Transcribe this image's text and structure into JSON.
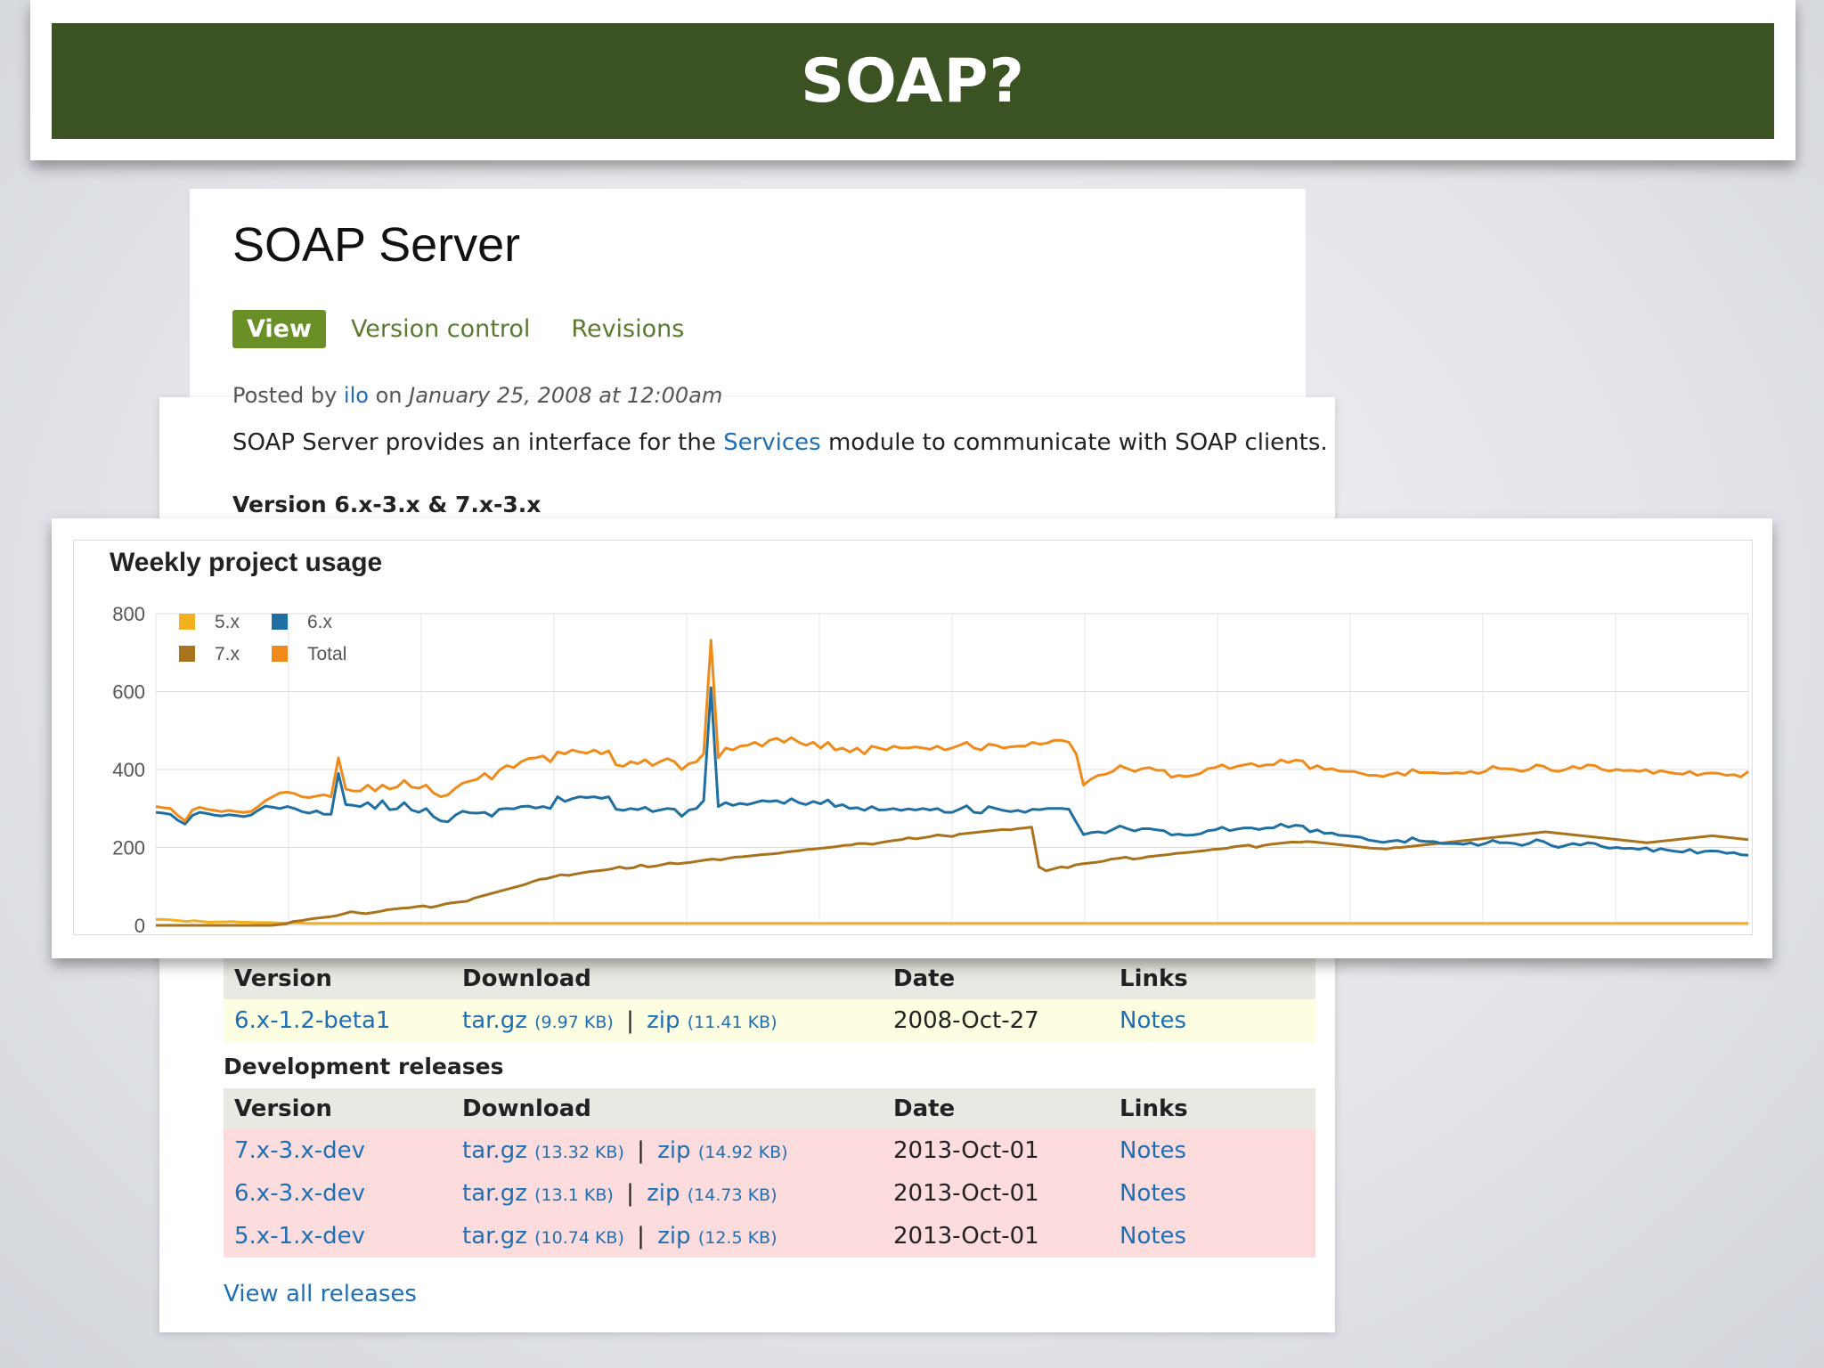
{
  "slide": {
    "title": "SOAP?"
  },
  "project": {
    "name": "SOAP Server",
    "tabs": [
      {
        "label": "View",
        "active": true
      },
      {
        "label": "Version control",
        "active": false
      },
      {
        "label": "Revisions",
        "active": false
      }
    ],
    "posted": {
      "prefix": "Posted by",
      "author": "ilo",
      "on": "on",
      "date": "January 25, 2008 at 12:00am"
    },
    "description": {
      "before": "SOAP Server provides an interface for the",
      "link": "Services",
      "after": "module to communicate with SOAP clients."
    },
    "version_heading": "Version 6.x-3.x & 7.x-3.x"
  },
  "chart_data": {
    "type": "line",
    "title": "Weekly project usage",
    "ylim": [
      0,
      800
    ],
    "yticks": [
      0,
      200,
      400,
      600,
      800
    ],
    "grid": true,
    "legend_placement": "top-left",
    "series": [
      {
        "name": "5.x",
        "color": "#f2b01e",
        "values": [
          15,
          15,
          14,
          12,
          10,
          12,
          10,
          8,
          9,
          9,
          10,
          8,
          8,
          7,
          7,
          7,
          6,
          6,
          6,
          6,
          5,
          5,
          5,
          5,
          5,
          5,
          5,
          5,
          5,
          5,
          5,
          5,
          5,
          5,
          5,
          5,
          5,
          5,
          5,
          5,
          5,
          5,
          5,
          5,
          5,
          5,
          5,
          5,
          5,
          5,
          5,
          5,
          5,
          5,
          5,
          5,
          5,
          5,
          5,
          5,
          5,
          5,
          5,
          5,
          5,
          5,
          5,
          5,
          5,
          5,
          5,
          5,
          5,
          5,
          5,
          5,
          5,
          5,
          5,
          5,
          5,
          5,
          5,
          5,
          5,
          5,
          5,
          5,
          5,
          5,
          5,
          5,
          5,
          5,
          5,
          5,
          5,
          5,
          5,
          5,
          5,
          5,
          5,
          5,
          5,
          5,
          5,
          5,
          5,
          5,
          5,
          5,
          5,
          5,
          5,
          5,
          5,
          5,
          5,
          5,
          5,
          5,
          5,
          5,
          5,
          5,
          5,
          5,
          5,
          5,
          5,
          5,
          5,
          5,
          5,
          5,
          5,
          5,
          5,
          5,
          5,
          5,
          5,
          5,
          5,
          5,
          5,
          5,
          5,
          5,
          5,
          5,
          5,
          5,
          5,
          5,
          5,
          5,
          5,
          5,
          5,
          5,
          5,
          5,
          5,
          5,
          5,
          5,
          5,
          5,
          5,
          5,
          5,
          5,
          5,
          5,
          5,
          5,
          5,
          5,
          5,
          5,
          5,
          5,
          5,
          5,
          5,
          5,
          5,
          5,
          5,
          5,
          5,
          5,
          5,
          5,
          5,
          5,
          5,
          5,
          5,
          5,
          5,
          5,
          5,
          5,
          5,
          5,
          5,
          5
        ]
      },
      {
        "name": "6.x",
        "color": "#1f6fa3",
        "values": [
          290,
          288,
          285,
          270,
          260,
          282,
          290,
          287,
          283,
          281,
          284,
          282,
          279,
          283,
          295,
          306,
          303,
          300,
          305,
          300,
          292,
          288,
          294,
          285,
          285,
          390,
          310,
          308,
          305,
          315,
          300,
          320,
          297,
          299,
          315,
          296,
          290,
          300,
          279,
          268,
          266,
          283,
          293,
          289,
          288,
          290,
          280,
          298,
          300,
          299,
          305,
          306,
          301,
          305,
          300,
          330,
          318,
          325,
          330,
          328,
          330,
          326,
          330,
          298,
          295,
          300,
          297,
          303,
          292,
          296,
          300,
          298,
          280,
          296,
          300,
          320,
          610,
          305,
          315,
          308,
          313,
          310,
          315,
          320,
          318,
          320,
          313,
          325,
          315,
          310,
          318,
          312,
          322,
          305,
          310,
          300,
          302,
          295,
          305,
          296,
          297,
          300,
          295,
          299,
          296,
          300,
          296,
          300,
          290,
          290,
          298,
          307,
          290,
          288,
          305,
          300,
          295,
          292,
          295,
          290,
          298,
          297,
          300,
          300,
          300,
          298,
          265,
          233,
          238,
          240,
          237,
          246,
          255,
          248,
          242,
          248,
          248,
          245,
          243,
          232,
          234,
          231,
          232,
          235,
          243,
          245,
          252,
          243,
          247,
          250,
          250,
          246,
          250,
          250,
          260,
          252,
          257,
          255,
          240,
          245,
          236,
          237,
          231,
          230,
          228,
          226,
          219,
          216,
          213,
          216,
          218,
          213,
          225,
          217,
          215,
          215,
          210,
          210,
          210,
          208,
          212,
          205,
          210,
          218,
          212,
          212,
          210,
          205,
          210,
          220,
          215,
          205,
          200,
          205,
          210,
          206,
          212,
          210,
          202,
          198,
          200,
          197,
          198,
          195,
          199,
          190,
          197,
          193,
          190,
          188,
          195,
          185,
          190,
          191,
          190,
          185,
          187,
          181,
          180
        ]
      },
      {
        "name": "7.x",
        "color": "#a8731c",
        "values": [
          0,
          0,
          0,
          0,
          0,
          0,
          0,
          0,
          0,
          0,
          0,
          0,
          0,
          0,
          0,
          0,
          0,
          2,
          4,
          10,
          12,
          15,
          18,
          20,
          22,
          25,
          30,
          35,
          32,
          30,
          33,
          36,
          40,
          42,
          44,
          45,
          48,
          50,
          46,
          50,
          55,
          58,
          60,
          62,
          70,
          75,
          80,
          85,
          90,
          95,
          100,
          105,
          112,
          118,
          120,
          125,
          130,
          128,
          132,
          135,
          138,
          140,
          142,
          145,
          150,
          146,
          148,
          155,
          150,
          152,
          156,
          160,
          158,
          160,
          162,
          165,
          168,
          170,
          168,
          172,
          175,
          176,
          178,
          180,
          182,
          183,
          185,
          188,
          190,
          192,
          195,
          196,
          198,
          200,
          202,
          205,
          206,
          210,
          210,
          208,
          212,
          215,
          218,
          220,
          225,
          222,
          225,
          228,
          232,
          230,
          228,
          234,
          236,
          238,
          240,
          242,
          244,
          246,
          245,
          248,
          250,
          252,
          150,
          140,
          145,
          150,
          148,
          155,
          158,
          160,
          162,
          165,
          170,
          172,
          175,
          170,
          172,
          176,
          178,
          180,
          182,
          185,
          186,
          188,
          190,
          192,
          195,
          196,
          198,
          202,
          204,
          206,
          200,
          205,
          208,
          210,
          212,
          214,
          213,
          215,
          214,
          212,
          210,
          208,
          206,
          204,
          202,
          200,
          198,
          197,
          196,
          199,
          200,
          202,
          204,
          206,
          208,
          210,
          212,
          214,
          216,
          218,
          220,
          222,
          224,
          226,
          228,
          230,
          232,
          234,
          236,
          238,
          240,
          238,
          236,
          234,
          232,
          230,
          228,
          226,
          224,
          222,
          220,
          218,
          216,
          214,
          212,
          214,
          216,
          218,
          220,
          222,
          224,
          226,
          228,
          230,
          228,
          226,
          224,
          222,
          220
        ]
      },
      {
        "name": "Total",
        "color": "#f08a1a",
        "values": [
          305,
          302,
          300,
          282,
          268,
          296,
          303,
          298,
          295,
          292,
          295,
          292,
          290,
          292,
          305,
          320,
          330,
          340,
          342,
          338,
          330,
          328,
          332,
          335,
          330,
          430,
          350,
          345,
          345,
          360,
          345,
          360,
          350,
          355,
          372,
          355,
          352,
          360,
          340,
          330,
          335,
          352,
          365,
          370,
          375,
          390,
          375,
          398,
          410,
          405,
          420,
          428,
          430,
          435,
          420,
          445,
          440,
          450,
          445,
          442,
          450,
          440,
          448,
          412,
          408,
          420,
          415,
          425,
          410,
          420,
          428,
          420,
          400,
          415,
          420,
          440,
          732,
          430,
          455,
          450,
          460,
          462,
          470,
          460,
          475,
          480,
          470,
          482,
          470,
          462,
          470,
          455,
          470,
          450,
          455,
          445,
          455,
          440,
          460,
          455,
          450,
          460,
          455,
          455,
          458,
          455,
          452,
          460,
          450,
          455,
          462,
          470,
          455,
          450,
          465,
          462,
          455,
          458,
          460,
          460,
          470,
          465,
          468,
          475,
          475,
          470,
          440,
          360,
          375,
          385,
          388,
          395,
          410,
          402,
          395,
          402,
          405,
          398,
          398,
          380,
          385,
          382,
          385,
          390,
          402,
          405,
          412,
          402,
          408,
          412,
          415,
          408,
          412,
          412,
          425,
          418,
          424,
          422,
          402,
          410,
          400,
          402,
          396,
          395,
          395,
          390,
          385,
          385,
          382,
          388,
          392,
          385,
          400,
          392,
          392,
          392,
          390,
          390,
          392,
          390,
          395,
          390,
          395,
          408,
          402,
          402,
          400,
          395,
          400,
          412,
          408,
          398,
          395,
          400,
          408,
          402,
          412,
          410,
          400,
          396,
          400,
          397,
          398,
          395,
          399,
          390,
          397,
          393,
          390,
          388,
          395,
          385,
          390,
          391,
          390,
          385,
          387,
          381,
          395
        ]
      }
    ]
  },
  "recommended": {
    "headers": [
      "Version",
      "Download",
      "Date",
      "Links"
    ],
    "rows": [
      {
        "version": "6.x-1.2-beta1",
        "targz": "tar.gz",
        "targz_size": "(9.97 KB)",
        "sep": "|",
        "zip": "zip",
        "zip_size": "(11.41 KB)",
        "date": "2008-Oct-27",
        "links": "Notes"
      }
    ]
  },
  "development": {
    "heading": "Development releases",
    "headers": [
      "Version",
      "Download",
      "Date",
      "Links"
    ],
    "rows": [
      {
        "version": "7.x-3.x-dev",
        "targz": "tar.gz",
        "targz_size": "(13.32 KB)",
        "sep": "|",
        "zip": "zip",
        "zip_size": "(14.92 KB)",
        "date": "2013-Oct-01",
        "links": "Notes"
      },
      {
        "version": "6.x-3.x-dev",
        "targz": "tar.gz",
        "targz_size": "(13.1 KB)",
        "sep": "|",
        "zip": "zip",
        "zip_size": "(14.73 KB)",
        "date": "2013-Oct-01",
        "links": "Notes"
      },
      {
        "version": "5.x-1.x-dev",
        "targz": "tar.gz",
        "targz_size": "(10.74 KB)",
        "sep": "|",
        "zip": "zip",
        "zip_size": "(12.5 KB)",
        "date": "2013-Oct-01",
        "links": "Notes"
      }
    ]
  },
  "footer": {
    "view_all": "View all releases"
  }
}
